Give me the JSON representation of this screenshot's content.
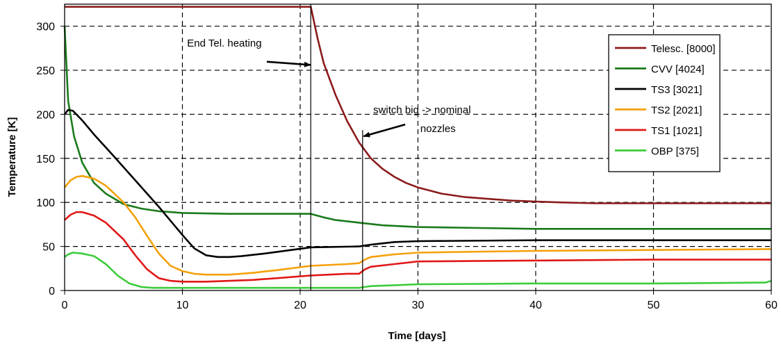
{
  "chart_data": {
    "type": "line",
    "xlabel": "Time [days]",
    "ylabel": "Temperature [K]",
    "xlim": [
      0,
      60
    ],
    "ylim": [
      0,
      325
    ],
    "xticks": [
      0,
      10,
      20,
      30,
      40,
      50,
      60
    ],
    "yticks": [
      0,
      50,
      100,
      150,
      200,
      250,
      300
    ],
    "grid": "dashed",
    "legend_position": "top-right",
    "series": [
      {
        "name": "Telesc. [8000]",
        "color": "#8b1a1a",
        "x": [
          0,
          10,
          20,
          20.9,
          21.5,
          22,
          23,
          24,
          25,
          26,
          27,
          28,
          29,
          30,
          32,
          34,
          36,
          38,
          40,
          42,
          45,
          50,
          55,
          60
        ],
        "y": [
          322,
          322,
          322,
          322,
          285,
          258,
          222,
          192,
          168,
          150,
          138,
          129,
          122,
          117,
          110,
          106,
          104,
          102,
          101,
          100,
          99,
          99,
          99,
          99
        ]
      },
      {
        "name": "CVV [4024]",
        "color": "#1a7a1a",
        "x": [
          0,
          0.3,
          0.8,
          1.5,
          2.5,
          3.5,
          5,
          6.5,
          8,
          10,
          14,
          18,
          20.9,
          22,
          23,
          25,
          27,
          30,
          35,
          40,
          50,
          60
        ],
        "y": [
          300,
          215,
          175,
          145,
          122,
          110,
          98,
          93,
          90,
          88,
          87,
          87,
          87,
          83,
          80,
          77,
          74,
          72,
          71,
          70,
          70,
          70
        ]
      },
      {
        "name": "TS3 [3021]",
        "color": "#000000",
        "x": [
          0,
          0.3,
          0.7,
          1.5,
          2.5,
          4,
          6,
          8,
          10,
          11,
          12,
          13,
          14,
          15,
          17,
          20.9,
          25,
          25.5,
          26,
          28,
          30,
          40,
          50,
          60
        ],
        "y": [
          200,
          205,
          204,
          193,
          177,
          155,
          125,
          95,
          63,
          48,
          40,
          38,
          38,
          39,
          42,
          49,
          50,
          51,
          52,
          55,
          56,
          57,
          57,
          57
        ]
      },
      {
        "name": "TS2 [2021]",
        "color": "#f5a00a",
        "x": [
          0,
          0.5,
          1,
          1.5,
          2.5,
          3.5,
          5,
          6,
          7,
          8,
          9,
          10,
          11,
          12,
          14,
          16,
          18,
          20.9,
          24,
          25,
          25.5,
          26,
          28,
          30,
          35,
          40,
          50,
          60
        ],
        "y": [
          117,
          125,
          129,
          130,
          127,
          119,
          100,
          83,
          62,
          42,
          28,
          22,
          19,
          18,
          18,
          20,
          23,
          28,
          30,
          31,
          35,
          38,
          41,
          43,
          44,
          45,
          46,
          47
        ]
      },
      {
        "name": "TS1 [1021]",
        "color": "#e01818",
        "x": [
          0,
          0.5,
          1,
          1.5,
          2.5,
          3.5,
          5,
          6,
          7,
          8,
          9,
          10,
          12,
          14,
          16,
          18,
          20.9,
          24,
          25,
          25.5,
          26,
          28,
          30,
          40,
          50,
          60
        ],
        "y": [
          80,
          86,
          89,
          89,
          85,
          77,
          58,
          40,
          24,
          14,
          11,
          10,
          10,
          11,
          12,
          14,
          17,
          19,
          19,
          24,
          27,
          30,
          33,
          34,
          35,
          35
        ]
      },
      {
        "name": "OBP [375]",
        "color": "#3ccc3c",
        "x": [
          0,
          0.3,
          0.7,
          1.5,
          2.5,
          3.5,
          4.5,
          5.5,
          6.5,
          7.5,
          9,
          12,
          15,
          20.9,
          25,
          25.5,
          26,
          28,
          30,
          40,
          50,
          59.5,
          60
        ],
        "y": [
          38,
          41,
          43,
          42,
          39,
          30,
          17,
          8,
          4,
          3,
          3,
          3,
          3,
          3,
          3,
          4,
          5,
          6,
          7,
          8,
          8,
          9,
          11
        ]
      }
    ],
    "markers": [
      {
        "x": 20.9,
        "y_range": [
          0,
          325
        ]
      },
      {
        "x": 25.3,
        "y_range": [
          0,
          182
        ]
      }
    ],
    "annotations": [
      {
        "text": "End Tel. heating",
        "text_x": 10.4,
        "text_y": 277,
        "arrow_to": [
          21,
          256
        ]
      },
      {
        "text": "switch big -> nominal",
        "text_x": 26.2,
        "text_y": 201,
        "arrow_to": [
          25.5,
          175
        ]
      },
      {
        "text": "nozzles",
        "text_x": 30.2,
        "text_y": 180
      }
    ]
  }
}
